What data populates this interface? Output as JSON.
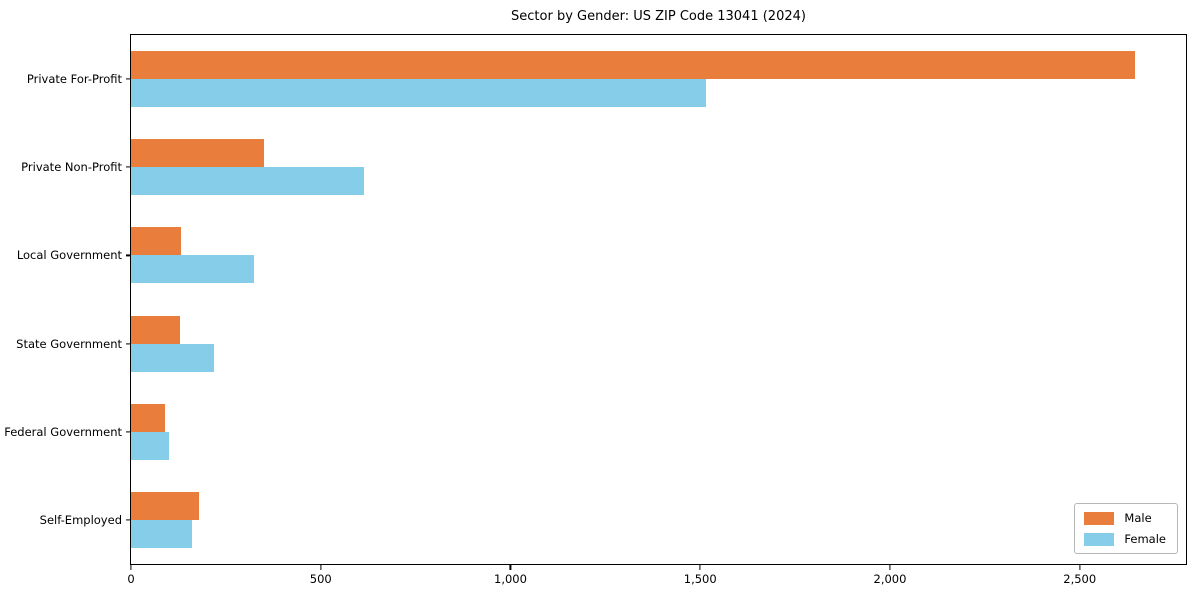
{
  "chart_data": {
    "type": "bar",
    "orientation": "horizontal",
    "title": "Sector by Gender: US ZIP Code 13041 (2024)",
    "categories": [
      "Private For-Profit",
      "Private Non-Profit",
      "Local Government",
      "State Government",
      "Federal Government",
      "Self-Employed"
    ],
    "series": [
      {
        "name": "Male",
        "color": "#e97e3c",
        "values": [
          2645,
          350,
          132,
          129,
          89,
          179
        ]
      },
      {
        "name": "Female",
        "color": "#85cde8",
        "values": [
          1515,
          615,
          323,
          219,
          100,
          161
        ]
      }
    ],
    "xlabel": "",
    "ylabel": "",
    "xlim": [
      0,
      2780
    ],
    "xticks": [
      {
        "value": 0,
        "label": "0"
      },
      {
        "value": 500,
        "label": "500"
      },
      {
        "value": 1000,
        "label": "1,000"
      },
      {
        "value": 1500,
        "label": "1,500"
      },
      {
        "value": 2000,
        "label": "2,000"
      },
      {
        "value": 2500,
        "label": "2,500"
      }
    ],
    "grid": false,
    "legend": {
      "position": "lower-right",
      "entries": [
        "Male",
        "Female"
      ]
    }
  },
  "colors": {
    "male": "#e97e3c",
    "female": "#85cde8",
    "spine": "#000000",
    "background": "#ffffff",
    "legend_border": "#b7b7b7",
    "text": "#000000"
  }
}
